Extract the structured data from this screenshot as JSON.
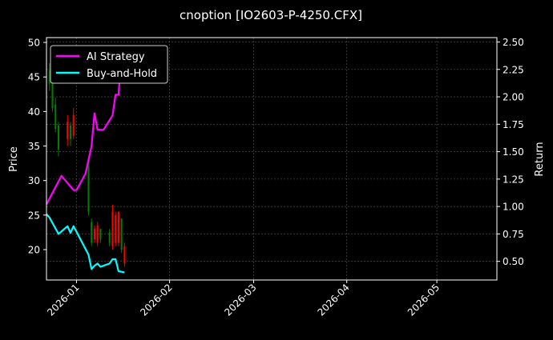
{
  "chart_data": {
    "type": "line",
    "title": "cnoption [IO2603-P-4250.CFX]",
    "ylabel": "Price",
    "y2label": "Return",
    "grid": true,
    "legend_position": "top-left",
    "xlim": [
      "2025-12-22",
      "2026-05-21"
    ],
    "ylim": [
      15.6,
      50.7
    ],
    "y2lim": [
      0.33,
      2.54
    ],
    "x_ticks": [
      "2026-01",
      "2026-02",
      "2026-03",
      "2026-04",
      "2026-05"
    ],
    "y_ticks": [
      20,
      25,
      30,
      35,
      40,
      45,
      50
    ],
    "y2_ticks": [
      0.5,
      0.75,
      1.0,
      1.25,
      1.5,
      1.75,
      2.0,
      2.25,
      2.5
    ],
    "colors": {
      "up": "#ff0000",
      "down": "#008000",
      "strategy": "#ff00ff",
      "buyhold": "#00ffff"
    },
    "candles": [
      {
        "date": "2025-12-23",
        "open": 46.0,
        "close": 44.0,
        "high": 47.0,
        "low": 43.0
      },
      {
        "date": "2025-12-24",
        "open": 45.0,
        "close": 40.5,
        "high": 46.0,
        "low": 40.0
      },
      {
        "date": "2025-12-25",
        "open": 41.0,
        "close": 37.5,
        "high": 42.0,
        "low": 37.0
      },
      {
        "date": "2025-12-26",
        "open": 38.0,
        "close": 34.5,
        "high": 38.5,
        "low": 33.5
      },
      {
        "date": "2025-12-29",
        "open": 36.0,
        "close": 38.5,
        "high": 39.5,
        "low": 35.0
      },
      {
        "date": "2025-12-30",
        "open": 38.0,
        "close": 36.0,
        "high": 38.5,
        "low": 35.0
      },
      {
        "date": "2025-12-31",
        "open": 36.5,
        "close": 39.5,
        "high": 40.5,
        "low": 36.0
      },
      {
        "date": "2026-01-05",
        "open": 33.0,
        "close": 25.5,
        "high": 33.5,
        "low": 25.0
      },
      {
        "date": "2026-01-06",
        "open": 24.0,
        "close": 21.0,
        "high": 24.5,
        "low": 20.5
      },
      {
        "date": "2026-01-07",
        "open": 21.5,
        "close": 23.0,
        "high": 23.5,
        "low": 21.0
      },
      {
        "date": "2026-01-08",
        "open": 21.0,
        "close": 23.5,
        "high": 24.0,
        "low": 20.5
      },
      {
        "date": "2026-01-09",
        "open": 23.0,
        "close": 21.5,
        "high": 23.0,
        "low": 21.0
      },
      {
        "date": "2026-01-12",
        "open": 22.5,
        "close": 21.0,
        "high": 23.0,
        "low": 20.5
      },
      {
        "date": "2026-01-13",
        "open": 20.5,
        "close": 25.5,
        "high": 26.5,
        "low": 20.0
      },
      {
        "date": "2026-01-14",
        "open": 21.0,
        "close": 25.0,
        "high": 25.5,
        "low": 20.5
      },
      {
        "date": "2026-01-15",
        "open": 21.0,
        "close": 25.5,
        "high": 25.5,
        "low": 20.5
      },
      {
        "date": "2026-01-16",
        "open": 24.5,
        "close": 20.0,
        "high": 24.5,
        "low": 19.5
      },
      {
        "date": "2026-01-17",
        "open": 18.0,
        "close": 20.5,
        "high": 21.0,
        "low": 17.5
      }
    ],
    "series": [
      {
        "name": "AI Strategy",
        "color": "#ff00ff",
        "points": [
          {
            "x": "2025-12-22",
            "y": 1.02
          },
          {
            "x": "2025-12-27",
            "y": 1.28
          },
          {
            "x": "2025-12-31",
            "y": 1.15
          },
          {
            "x": "2026-01-01",
            "y": 1.15
          },
          {
            "x": "2026-01-04",
            "y": 1.3
          },
          {
            "x": "2026-01-06",
            "y": 1.55
          },
          {
            "x": "2026-01-07",
            "y": 1.85
          },
          {
            "x": "2026-01-08",
            "y": 1.7
          },
          {
            "x": "2026-01-10",
            "y": 1.7
          },
          {
            "x": "2026-01-13",
            "y": 1.83
          },
          {
            "x": "2026-01-14",
            "y": 2.02
          },
          {
            "x": "2026-01-15",
            "y": 2.02
          },
          {
            "x": "2026-01-16",
            "y": 2.4
          }
        ]
      },
      {
        "name": "Buy-and-Hold",
        "color": "#00ffff",
        "points": [
          {
            "x": "2025-12-22",
            "y": 0.93
          },
          {
            "x": "2025-12-23",
            "y": 0.9
          },
          {
            "x": "2025-12-26",
            "y": 0.75
          },
          {
            "x": "2025-12-29",
            "y": 0.82
          },
          {
            "x": "2025-12-30",
            "y": 0.76
          },
          {
            "x": "2025-12-31",
            "y": 0.82
          },
          {
            "x": "2026-01-01",
            "y": 0.77
          },
          {
            "x": "2026-01-05",
            "y": 0.56
          },
          {
            "x": "2026-01-06",
            "y": 0.43
          },
          {
            "x": "2026-01-07",
            "y": 0.46
          },
          {
            "x": "2026-01-08",
            "y": 0.48
          },
          {
            "x": "2026-01-09",
            "y": 0.45
          },
          {
            "x": "2026-01-12",
            "y": 0.48
          },
          {
            "x": "2026-01-13",
            "y": 0.52
          },
          {
            "x": "2026-01-14",
            "y": 0.52
          },
          {
            "x": "2026-01-15",
            "y": 0.41
          },
          {
            "x": "2026-01-17",
            "y": 0.4
          }
        ]
      }
    ]
  }
}
